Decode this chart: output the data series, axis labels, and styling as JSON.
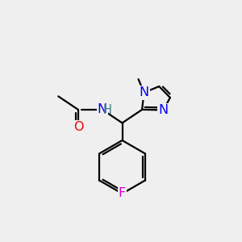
{
  "bg_color": "#efefef",
  "bond_color": "#000000",
  "bond_width": 1.6,
  "atom_colors": {
    "N": "#0000ee",
    "O": "#ee0000",
    "F": "#cc00cc",
    "NH": "#008080"
  },
  "font_size_atom": 11.5,
  "dbo": 0.1
}
